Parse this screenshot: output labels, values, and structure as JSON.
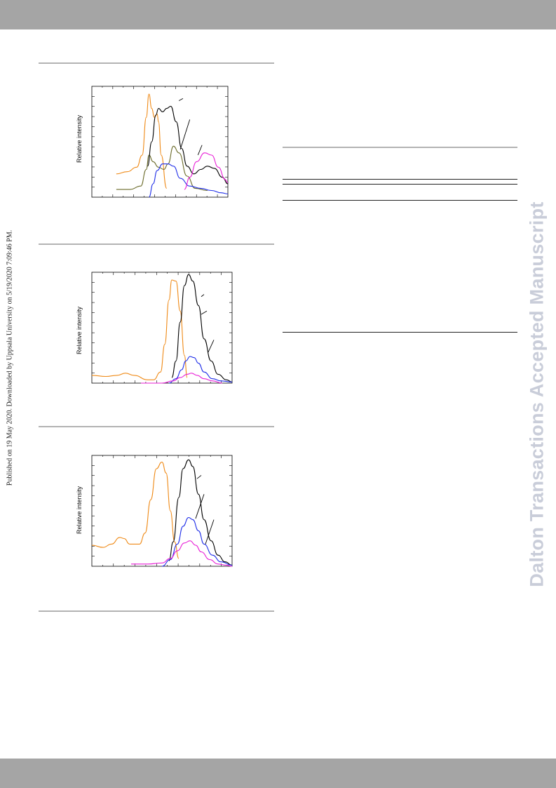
{
  "side_note": "Published on 19 May 2020. Downloaded by Uppsala University on 5/19/2020 7:09:46 PM.",
  "watermark": "Dalton Transactions Accepted Manuscript",
  "colors": {
    "orange": "#ef8a17",
    "black": "#000000",
    "olive": "#6b6b2a",
    "blue": "#1f2ee8",
    "magenta": "#e81fd6",
    "header_bar": "#a5a5a5",
    "watermark": "#c9cdd9"
  },
  "chart_data": [
    {
      "type": "line",
      "ylabel": "Relative intensity",
      "series": [
        {
          "color": "orange",
          "points": [
            [
              0.18,
              0.21
            ],
            [
              0.26,
              0.23
            ],
            [
              0.33,
              0.27
            ],
            [
              0.37,
              0.38
            ],
            [
              0.4,
              0.72
            ],
            [
              0.42,
              0.93
            ],
            [
              0.44,
              0.8
            ],
            [
              0.46,
              0.72
            ],
            [
              0.48,
              0.75
            ],
            [
              0.49,
              0.68
            ],
            [
              0.51,
              0.38
            ],
            [
              0.55,
              0.08
            ]
          ]
        },
        {
          "color": "olive",
          "points": [
            [
              0.18,
              0.07
            ],
            [
              0.28,
              0.07
            ],
            [
              0.36,
              0.1
            ],
            [
              0.4,
              0.25
            ],
            [
              0.42,
              0.38
            ],
            [
              0.45,
              0.32
            ],
            [
              0.49,
              0.27
            ],
            [
              0.53,
              0.25
            ],
            [
              0.56,
              0.3
            ],
            [
              0.6,
              0.46
            ],
            [
              0.64,
              0.4
            ],
            [
              0.7,
              0.19
            ],
            [
              0.76,
              0.08
            ],
            [
              0.85,
              0.06
            ]
          ]
        },
        {
          "color": "black",
          "points": [
            [
              0.41,
              0.28
            ],
            [
              0.44,
              0.5
            ],
            [
              0.47,
              0.74
            ],
            [
              0.49,
              0.8
            ],
            [
              0.52,
              0.77
            ],
            [
              0.55,
              0.8
            ],
            [
              0.58,
              0.82
            ],
            [
              0.62,
              0.68
            ],
            [
              0.66,
              0.44
            ],
            [
              0.7,
              0.28
            ],
            [
              0.75,
              0.21
            ],
            [
              0.8,
              0.25
            ],
            [
              0.85,
              0.28
            ],
            [
              0.9,
              0.26
            ],
            [
              0.96,
              0.18
            ],
            [
              1.0,
              0.12
            ]
          ]
        },
        {
          "color": "blue",
          "points": [
            [
              0.42,
              0.0
            ],
            [
              0.45,
              0.12
            ],
            [
              0.48,
              0.24
            ],
            [
              0.52,
              0.3
            ],
            [
              0.56,
              0.3
            ],
            [
              0.6,
              0.28
            ],
            [
              0.65,
              0.17
            ],
            [
              0.72,
              0.1
            ],
            [
              0.8,
              0.08
            ],
            [
              0.88,
              0.06
            ],
            [
              0.95,
              0.04
            ],
            [
              1.0,
              0.03
            ]
          ]
        },
        {
          "color": "magenta",
          "points": [
            [
              0.68,
              0.07
            ],
            [
              0.72,
              0.18
            ],
            [
              0.77,
              0.32
            ],
            [
              0.83,
              0.4
            ],
            [
              0.88,
              0.38
            ],
            [
              0.93,
              0.27
            ],
            [
              0.98,
              0.16
            ],
            [
              1.0,
              0.13
            ]
          ]
        }
      ],
      "markers": [
        [
          [
            0.64,
            0.87
          ],
          [
            0.67,
            0.89
          ]
        ],
        [
          [
            0.65,
            0.43
          ],
          [
            0.72,
            0.7
          ]
        ],
        [
          [
            0.78,
            0.38
          ],
          [
            0.81,
            0.47
          ]
        ]
      ]
    },
    {
      "type": "line",
      "ylabel": "Relative intensity",
      "series": [
        {
          "color": "orange",
          "points": [
            [
              0.0,
              0.07
            ],
            [
              0.1,
              0.06
            ],
            [
              0.18,
              0.07
            ],
            [
              0.24,
              0.09
            ],
            [
              0.3,
              0.07
            ],
            [
              0.4,
              0.03
            ],
            [
              0.44,
              0.03
            ],
            [
              0.49,
              0.1
            ],
            [
              0.52,
              0.35
            ],
            [
              0.55,
              0.75
            ],
            [
              0.57,
              0.93
            ],
            [
              0.6,
              0.92
            ],
            [
              0.63,
              0.65
            ],
            [
              0.66,
              0.25
            ],
            [
              0.68,
              0.05
            ]
          ]
        },
        {
          "color": "black",
          "points": [
            [
              0.57,
              0.05
            ],
            [
              0.6,
              0.2
            ],
            [
              0.63,
              0.55
            ],
            [
              0.66,
              0.88
            ],
            [
              0.69,
              0.98
            ],
            [
              0.72,
              0.92
            ],
            [
              0.76,
              0.7
            ],
            [
              0.8,
              0.4
            ],
            [
              0.85,
              0.2
            ],
            [
              0.9,
              0.08
            ],
            [
              0.96,
              0.03
            ],
            [
              1.0,
              0.01
            ]
          ]
        },
        {
          "color": "blue",
          "points": [
            [
              0.55,
              0.0
            ],
            [
              0.6,
              0.04
            ],
            [
              0.64,
              0.12
            ],
            [
              0.67,
              0.2
            ],
            [
              0.7,
              0.24
            ],
            [
              0.73,
              0.23
            ],
            [
              0.76,
              0.18
            ],
            [
              0.8,
              0.1
            ],
            [
              0.86,
              0.04
            ],
            [
              0.92,
              0.02
            ],
            [
              1.0,
              0.01
            ]
          ]
        },
        {
          "color": "magenta",
          "points": [
            [
              0.35,
              0.0
            ],
            [
              0.5,
              0.0
            ],
            [
              0.58,
              0.02
            ],
            [
              0.63,
              0.05
            ],
            [
              0.68,
              0.08
            ],
            [
              0.71,
              0.09
            ],
            [
              0.75,
              0.07
            ],
            [
              0.8,
              0.04
            ],
            [
              0.86,
              0.02
            ],
            [
              0.93,
              0.0
            ]
          ]
        }
      ],
      "markers": [
        [
          [
            0.78,
            0.78
          ],
          [
            0.8,
            0.8
          ]
        ],
        [
          [
            0.78,
            0.62
          ],
          [
            0.82,
            0.65
          ]
        ],
        [
          [
            0.83,
            0.28
          ],
          [
            0.87,
            0.39
          ]
        ]
      ]
    },
    {
      "type": "line",
      "ylabel": "Relative intensity",
      "series": [
        {
          "color": "orange",
          "points": [
            [
              0.0,
              0.19
            ],
            [
              0.08,
              0.17
            ],
            [
              0.14,
              0.2
            ],
            [
              0.2,
              0.26
            ],
            [
              0.23,
              0.25
            ],
            [
              0.27,
              0.2
            ],
            [
              0.34,
              0.2
            ],
            [
              0.38,
              0.3
            ],
            [
              0.42,
              0.6
            ],
            [
              0.46,
              0.88
            ],
            [
              0.5,
              0.94
            ],
            [
              0.53,
              0.84
            ],
            [
              0.56,
              0.5
            ],
            [
              0.59,
              0.22
            ],
            [
              0.62,
              0.07
            ]
          ]
        },
        {
          "color": "black",
          "points": [
            [
              0.55,
              0.05
            ],
            [
              0.58,
              0.22
            ],
            [
              0.62,
              0.62
            ],
            [
              0.65,
              0.88
            ],
            [
              0.69,
              0.96
            ],
            [
              0.72,
              0.9
            ],
            [
              0.76,
              0.65
            ],
            [
              0.8,
              0.42
            ],
            [
              0.85,
              0.23
            ],
            [
              0.9,
              0.1
            ],
            [
              0.95,
              0.04
            ],
            [
              1.0,
              0.01
            ]
          ]
        },
        {
          "color": "blue",
          "points": [
            [
              0.5,
              0.0
            ],
            [
              0.56,
              0.06
            ],
            [
              0.61,
              0.2
            ],
            [
              0.65,
              0.36
            ],
            [
              0.69,
              0.44
            ],
            [
              0.72,
              0.42
            ],
            [
              0.76,
              0.32
            ],
            [
              0.8,
              0.2
            ],
            [
              0.86,
              0.1
            ],
            [
              0.92,
              0.04
            ],
            [
              1.0,
              0.01
            ]
          ]
        },
        {
          "color": "magenta",
          "points": [
            [
              0.28,
              0.02
            ],
            [
              0.4,
              0.02
            ],
            [
              0.5,
              0.03
            ],
            [
              0.56,
              0.07
            ],
            [
              0.61,
              0.14
            ],
            [
              0.66,
              0.21
            ],
            [
              0.7,
              0.23
            ],
            [
              0.74,
              0.19
            ],
            [
              0.78,
              0.13
            ],
            [
              0.84,
              0.06
            ],
            [
              0.9,
              0.02
            ],
            [
              0.96,
              0.01
            ],
            [
              1.0,
              0.0
            ]
          ]
        }
      ],
      "markers": [
        [
          [
            0.75,
            0.79
          ],
          [
            0.78,
            0.82
          ]
        ],
        [
          [
            0.74,
            0.43
          ],
          [
            0.8,
            0.65
          ]
        ],
        [
          [
            0.81,
            0.2
          ],
          [
            0.87,
            0.42
          ]
        ]
      ]
    }
  ]
}
